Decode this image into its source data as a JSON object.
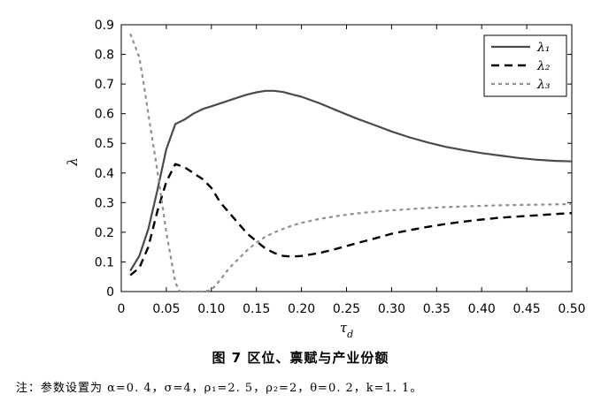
{
  "caption": "图 7 区位、禀赋与产业份额",
  "note": "注：参数设置为 α=0. 4，σ=4，ρ₁=2. 5，ρ₂=2，θ=0. 2，k=1. 1。",
  "chart_data": {
    "type": "line",
    "xlabel": "τd",
    "ylabel": "λ",
    "xlim": [
      0.0,
      0.5
    ],
    "ylim": [
      0.0,
      0.9
    ],
    "xticks": [
      "0",
      "0.05",
      "0.10",
      "0.15",
      "0.20",
      "0.25",
      "0.30",
      "0.35",
      "0.40",
      "0.45",
      "0.50"
    ],
    "yticks": [
      "0",
      "0.1",
      "0.2",
      "0.3",
      "0.4",
      "0.5",
      "0.6",
      "0.7",
      "0.8",
      "0.9"
    ],
    "xtick_values": [
      0,
      0.05,
      0.1,
      0.15,
      0.2,
      0.25,
      0.3,
      0.35,
      0.4,
      0.45,
      0.5
    ],
    "ytick_values": [
      0,
      0.1,
      0.2,
      0.3,
      0.4,
      0.5,
      0.6,
      0.7,
      0.8,
      0.9
    ],
    "legend_position": "top-right",
    "grid": false,
    "series": [
      {
        "name": "λ₁",
        "color": "#4a4a4a",
        "style": "solid",
        "x": [
          0.01,
          0.02,
          0.03,
          0.04,
          0.05,
          0.06,
          0.07,
          0.08,
          0.09,
          0.1,
          0.11,
          0.12,
          0.13,
          0.14,
          0.15,
          0.16,
          0.17,
          0.18,
          0.19,
          0.2,
          0.22,
          0.24,
          0.26,
          0.28,
          0.3,
          0.32,
          0.34,
          0.36,
          0.38,
          0.4,
          0.42,
          0.44,
          0.46,
          0.48,
          0.5
        ],
        "y": [
          0.07,
          0.12,
          0.21,
          0.34,
          0.48,
          0.565,
          0.58,
          0.6,
          0.615,
          0.625,
          0.635,
          0.645,
          0.655,
          0.665,
          0.672,
          0.677,
          0.677,
          0.673,
          0.665,
          0.657,
          0.635,
          0.61,
          0.585,
          0.563,
          0.54,
          0.52,
          0.503,
          0.488,
          0.477,
          0.467,
          0.459,
          0.451,
          0.445,
          0.441,
          0.439
        ]
      },
      {
        "name": "λ₂",
        "color": "#000000",
        "style": "dashed",
        "x": [
          0.01,
          0.02,
          0.03,
          0.04,
          0.05,
          0.06,
          0.07,
          0.08,
          0.09,
          0.1,
          0.11,
          0.12,
          0.13,
          0.14,
          0.15,
          0.16,
          0.17,
          0.18,
          0.19,
          0.2,
          0.22,
          0.24,
          0.26,
          0.28,
          0.3,
          0.32,
          0.34,
          0.36,
          0.38,
          0.4,
          0.42,
          0.44,
          0.46,
          0.48,
          0.5
        ],
        "y": [
          0.055,
          0.08,
          0.15,
          0.27,
          0.37,
          0.43,
          0.42,
          0.4,
          0.38,
          0.35,
          0.3,
          0.265,
          0.23,
          0.195,
          0.17,
          0.145,
          0.13,
          0.12,
          0.118,
          0.12,
          0.13,
          0.145,
          0.162,
          0.178,
          0.195,
          0.207,
          0.218,
          0.228,
          0.236,
          0.243,
          0.249,
          0.253,
          0.257,
          0.261,
          0.265
        ]
      },
      {
        "name": "λ₃",
        "color": "#909090",
        "style": "dotted",
        "x": [
          0.01,
          0.02,
          0.025,
          0.03,
          0.04,
          0.05,
          0.06,
          0.065,
          0.07,
          0.08,
          0.09,
          0.1,
          0.11,
          0.12,
          0.13,
          0.14,
          0.15,
          0.16,
          0.17,
          0.18,
          0.19,
          0.2,
          0.22,
          0.24,
          0.26,
          0.28,
          0.3,
          0.32,
          0.34,
          0.36,
          0.38,
          0.4,
          0.42,
          0.44,
          0.46,
          0.48,
          0.5
        ],
        "y": [
          0.87,
          0.79,
          0.7,
          0.6,
          0.41,
          0.2,
          0.03,
          0.0,
          0.0,
          0.0,
          0.0,
          0.005,
          0.04,
          0.08,
          0.11,
          0.14,
          0.165,
          0.185,
          0.2,
          0.212,
          0.223,
          0.232,
          0.245,
          0.255,
          0.263,
          0.269,
          0.274,
          0.278,
          0.282,
          0.285,
          0.287,
          0.289,
          0.291,
          0.292,
          0.293,
          0.294,
          0.295
        ]
      }
    ]
  }
}
